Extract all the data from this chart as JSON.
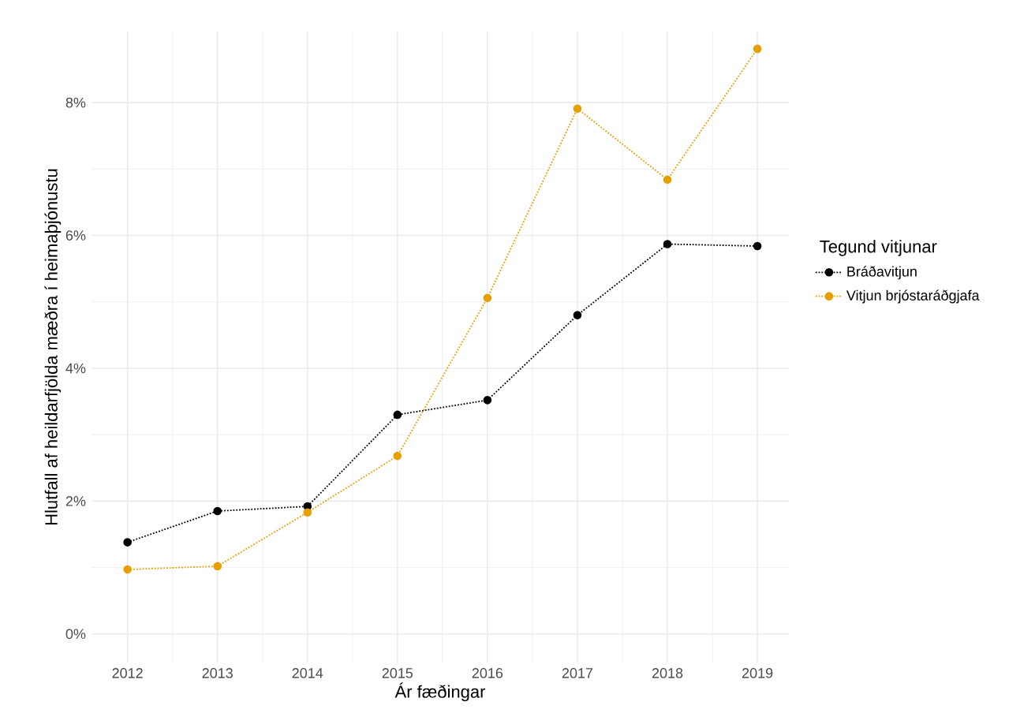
{
  "chart_data": {
    "type": "line",
    "xlabel": "Ár fæðingar",
    "ylabel": "Hlutfall af heildarfjölda mæðra í heimaþjónustu",
    "legend_title": "Tegund vitjunar",
    "x": [
      2012,
      2013,
      2014,
      2015,
      2016,
      2017,
      2018,
      2019
    ],
    "series": [
      {
        "name": "Bráðavitjun",
        "color": "#000000",
        "values": [
          1.38,
          1.85,
          1.92,
          3.3,
          3.52,
          4.8,
          5.87,
          5.84
        ]
      },
      {
        "name": "Vitjun brjóstaráðgjafa",
        "color": "#e69f00",
        "values": [
          0.97,
          1.02,
          1.83,
          2.68,
          5.06,
          7.91,
          6.84,
          8.81
        ]
      }
    ],
    "xlim": [
      2011.6,
      2019.35
    ],
    "ylim": [
      -0.43,
      9.07
    ],
    "xticks": [
      2012,
      2013,
      2014,
      2015,
      2016,
      2017,
      2018,
      2019
    ],
    "yticks": [
      {
        "value": 0,
        "label": "0%"
      },
      {
        "value": 2,
        "label": "2%"
      },
      {
        "value": 4,
        "label": "4%"
      },
      {
        "value": 6,
        "label": "6%"
      },
      {
        "value": 8,
        "label": "8%"
      }
    ],
    "grid": true,
    "legend": "right",
    "marker": "circle",
    "line_style": "dotted"
  }
}
